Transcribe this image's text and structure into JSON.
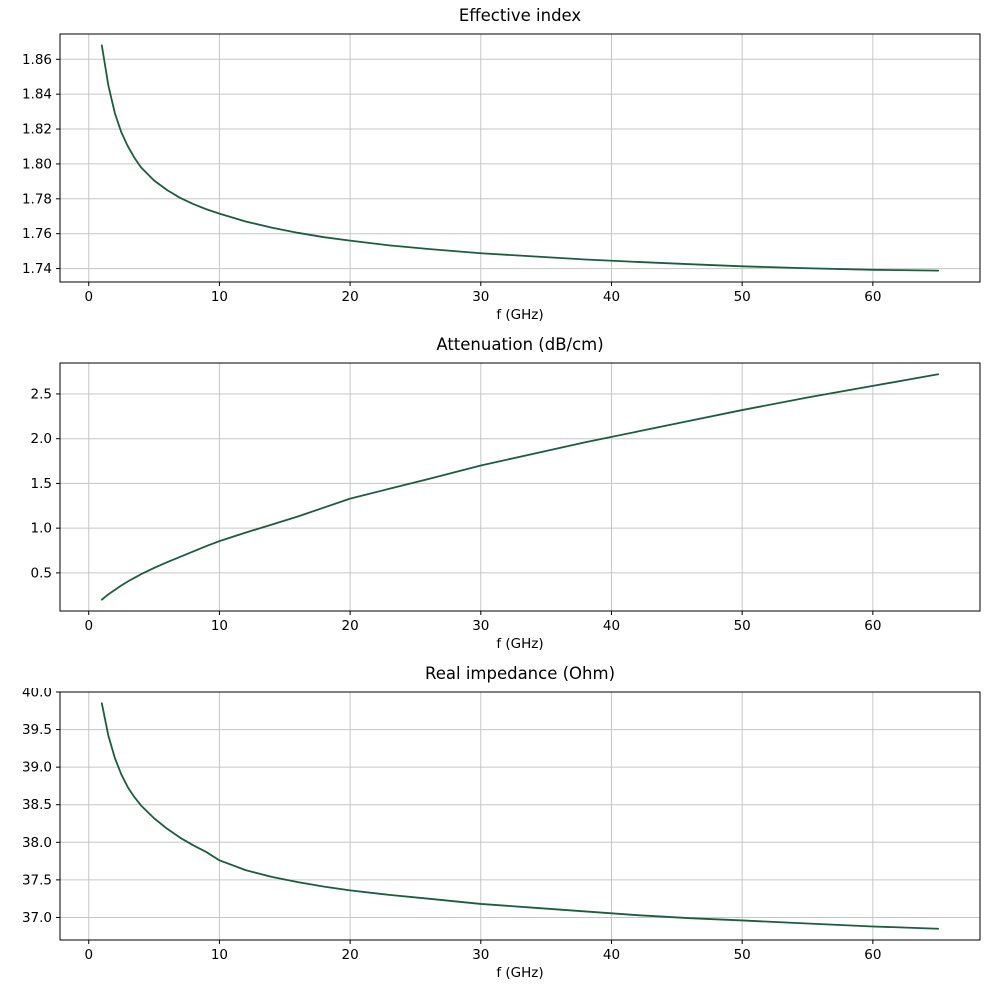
{
  "figure": {
    "background": "#ffffff",
    "line_color": "#1b5e3e",
    "grid_color": "#c6c6c6",
    "frame_color": "#000000"
  },
  "chart_data": [
    {
      "type": "line",
      "title": "Effective index",
      "xlabel": "f (GHz)",
      "ylabel": "",
      "grid": true,
      "legend": null,
      "x": [
        1,
        1.5,
        2,
        2.5,
        3,
        3.5,
        4,
        5,
        6,
        7,
        8,
        9,
        10,
        12,
        14,
        16,
        18,
        20,
        23,
        26,
        30,
        34,
        38,
        42,
        46,
        50,
        55,
        60,
        65
      ],
      "y": [
        1.868,
        1.845,
        1.829,
        1.818,
        1.81,
        1.8035,
        1.798,
        1.7905,
        1.785,
        1.7805,
        1.777,
        1.774,
        1.7715,
        1.767,
        1.7635,
        1.7605,
        1.758,
        1.756,
        1.7533,
        1.7512,
        1.7488,
        1.747,
        1.7452,
        1.7438,
        1.7425,
        1.7413,
        1.7402,
        1.7393,
        1.7388
      ],
      "xlim": [
        -2.2,
        68.2
      ],
      "ylim": [
        1.7323,
        1.8745
      ],
      "xticks": [
        0,
        10,
        20,
        30,
        40,
        50,
        60
      ],
      "xtick_labels": [
        "0",
        "10",
        "20",
        "30",
        "40",
        "50",
        "60"
      ],
      "yticks": [
        1.74,
        1.76,
        1.78,
        1.8,
        1.82,
        1.84,
        1.86
      ],
      "ytick_labels": [
        "1.74",
        "1.76",
        "1.78",
        "1.80",
        "1.82",
        "1.84",
        "1.86"
      ]
    },
    {
      "type": "line",
      "title": "Attenuation (dB/cm)",
      "xlabel": "f (GHz)",
      "ylabel": "",
      "grid": true,
      "legend": null,
      "x": [
        1,
        1.5,
        2,
        2.5,
        3,
        3.5,
        4,
        5,
        6,
        7,
        8,
        9,
        10,
        12,
        14,
        16,
        18,
        20,
        23,
        26,
        30,
        34,
        38,
        42,
        46,
        50,
        55,
        60,
        65
      ],
      "y": [
        0.2,
        0.26,
        0.31,
        0.36,
        0.405,
        0.445,
        0.485,
        0.555,
        0.62,
        0.68,
        0.74,
        0.8,
        0.855,
        0.95,
        1.04,
        1.13,
        1.23,
        1.33,
        1.44,
        1.55,
        1.7,
        1.83,
        1.96,
        2.08,
        2.2,
        2.32,
        2.46,
        2.59,
        2.72
      ],
      "xlim": [
        -2.2,
        68.2
      ],
      "ylim": [
        0.074,
        2.846
      ],
      "xticks": [
        0,
        10,
        20,
        30,
        40,
        50,
        60
      ],
      "xtick_labels": [
        "0",
        "10",
        "20",
        "30",
        "40",
        "50",
        "60"
      ],
      "yticks": [
        0.5,
        1.0,
        1.5,
        2.0,
        2.5
      ],
      "ytick_labels": [
        "0.5",
        "1.0",
        "1.5",
        "2.0",
        "2.5"
      ]
    },
    {
      "type": "line",
      "title": "Real impedance (Ohm)",
      "xlabel": "f (GHz)",
      "ylabel": "",
      "grid": true,
      "legend": null,
      "x": [
        1,
        1.5,
        2,
        2.5,
        3,
        3.5,
        4,
        5,
        6,
        7,
        8,
        9,
        10,
        12,
        14,
        16,
        18,
        20,
        23,
        26,
        30,
        34,
        38,
        42,
        46,
        50,
        55,
        60,
        65
      ],
      "y": [
        39.85,
        39.42,
        39.12,
        38.9,
        38.73,
        38.6,
        38.49,
        38.32,
        38.18,
        38.06,
        37.96,
        37.87,
        37.76,
        37.63,
        37.54,
        37.47,
        37.41,
        37.36,
        37.3,
        37.25,
        37.18,
        37.13,
        37.08,
        37.03,
        36.99,
        36.96,
        36.92,
        36.88,
        36.85
      ],
      "xlim": [
        -2.2,
        68.2
      ],
      "ylim": [
        36.7,
        40.0
      ],
      "xticks": [
        0,
        10,
        20,
        30,
        40,
        50,
        60
      ],
      "xtick_labels": [
        "0",
        "10",
        "20",
        "30",
        "40",
        "50",
        "60"
      ],
      "yticks": [
        37.0,
        37.5,
        38.0,
        38.5,
        39.0,
        39.5,
        40.0
      ],
      "ytick_labels": [
        "37.0",
        "37.5",
        "38.0",
        "38.5",
        "39.0",
        "39.5",
        "40.0"
      ]
    }
  ]
}
